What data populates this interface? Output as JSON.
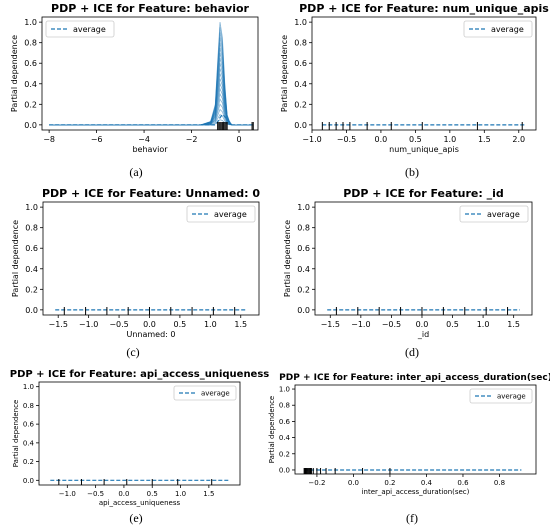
{
  "chart_data": [
    {
      "type": "line",
      "panel_caption": "(a)",
      "title": "PDP + ICE for Feature: behavior",
      "xlabel": "behavior",
      "ylabel": "Partial dependence",
      "xlim": [
        -8.3,
        0.8
      ],
      "ylim": [
        -0.05,
        1.05
      ],
      "xticks": [
        -8,
        -6,
        -4,
        -2,
        0
      ],
      "xtick_labels": [
        "−8",
        "−6",
        "−4",
        "−2",
        "0"
      ],
      "yticks": [
        0.0,
        0.2,
        0.4,
        0.6,
        0.8,
        1.0
      ],
      "ytick_labels": [
        "0.0",
        "0.2",
        "0.4",
        "0.6",
        "0.8",
        "1.0"
      ],
      "legend": {
        "label": "average",
        "position": "top-left"
      },
      "rug_x": [
        -0.9,
        -0.85,
        -0.8,
        -0.75,
        -0.7,
        -0.65,
        -0.6,
        -0.55,
        -0.5,
        0.55,
        0.6
      ],
      "ice_profiles": {
        "x": [
          -8.0,
          -1.6,
          -1.2,
          -1.0,
          -0.9,
          -0.8,
          -0.7,
          -0.6,
          -0.5,
          -0.4,
          -0.3,
          0.0,
          0.6
        ],
        "peak_heights": [
          0.05,
          0.1,
          0.15,
          0.2,
          0.25,
          0.3,
          0.35,
          0.4,
          0.45,
          0.5,
          0.55,
          0.6,
          0.65,
          0.7,
          0.75,
          0.8,
          0.85,
          0.9,
          0.95,
          1.0
        ]
      },
      "series": [
        {
          "name": "average",
          "x": [
            -8.0,
            -1.0,
            -0.9,
            -0.8,
            -0.7,
            -0.6,
            -0.5,
            -0.4,
            -0.3,
            0.6
          ],
          "y": [
            0.0,
            0.0,
            0.03,
            0.07,
            0.1,
            0.08,
            0.05,
            0.03,
            0.0,
            0.0
          ]
        }
      ]
    },
    {
      "type": "line",
      "panel_caption": "(b)",
      "title": "PDP + ICE for Feature: num_unique_apis",
      "xlabel": "num_unique_apis",
      "ylabel": "Partial dependence",
      "xlim": [
        -1.0,
        2.25
      ],
      "ylim": [
        -0.05,
        1.05
      ],
      "xticks": [
        -1.0,
        -0.5,
        0.0,
        0.5,
        1.0,
        1.5,
        2.0
      ],
      "xtick_labels": [
        "−1.0",
        "−0.5",
        "0.0",
        "0.5",
        "1.0",
        "1.5",
        "2.0"
      ],
      "yticks": [
        0.0,
        0.2,
        0.4,
        0.6,
        0.8,
        1.0
      ],
      "ytick_labels": [
        "0.0",
        "0.2",
        "0.4",
        "0.6",
        "0.8",
        "1.0"
      ],
      "legend": {
        "label": "average",
        "position": "top-right"
      },
      "rug_x": [
        -0.85,
        -0.75,
        -0.65,
        -0.55,
        -0.45,
        -0.2,
        0.15,
        0.6,
        1.4,
        2.05
      ],
      "series": [
        {
          "name": "average",
          "x": [
            -0.85,
            2.1
          ],
          "y": [
            0.0,
            0.0
          ]
        }
      ]
    },
    {
      "type": "line",
      "panel_caption": "(c)",
      "title": "PDP + ICE for Feature: Unnamed: 0",
      "xlabel": "Unnamed: 0",
      "ylabel": "Partial dependence",
      "xlim": [
        -1.75,
        1.8
      ],
      "ylim": [
        -0.05,
        1.05
      ],
      "xticks": [
        -1.5,
        -1.0,
        -0.5,
        0.0,
        0.5,
        1.0,
        1.5
      ],
      "xtick_labels": [
        "−1.5",
        "−1.0",
        "−0.5",
        "0.0",
        "0.5",
        "1.0",
        "1.5"
      ],
      "yticks": [
        0.0,
        0.2,
        0.4,
        0.6,
        0.8,
        1.0
      ],
      "ytick_labels": [
        "0.0",
        "0.2",
        "0.4",
        "0.6",
        "0.8",
        "1.0"
      ],
      "legend": {
        "label": "average",
        "position": "top-right"
      },
      "rug_x": [
        -1.4,
        -1.05,
        -0.7,
        -0.35,
        0.0,
        0.35,
        0.7,
        1.05,
        1.4
      ],
      "series": [
        {
          "name": "average",
          "x": [
            -1.55,
            1.6
          ],
          "y": [
            0.0,
            0.0
          ]
        }
      ]
    },
    {
      "type": "line",
      "panel_caption": "(d)",
      "title": "PDP + ICE for Feature: _id",
      "xlabel": "_id",
      "ylabel": "Partial dependence",
      "xlim": [
        -1.75,
        1.8
      ],
      "ylim": [
        -0.05,
        1.05
      ],
      "xticks": [
        -1.5,
        -1.0,
        -0.5,
        0.0,
        0.5,
        1.0,
        1.5
      ],
      "xtick_labels": [
        "−1.5",
        "−1.0",
        "−0.5",
        "0.0",
        "0.5",
        "1.0",
        "1.5"
      ],
      "yticks": [
        0.0,
        0.2,
        0.4,
        0.6,
        0.8,
        1.0
      ],
      "ytick_labels": [
        "0.0",
        "0.2",
        "0.4",
        "0.6",
        "0.8",
        "1.0"
      ],
      "legend": {
        "label": "average",
        "position": "top-right"
      },
      "rug_x": [
        -1.4,
        -1.05,
        -0.7,
        -0.35,
        0.0,
        0.35,
        0.7,
        1.05,
        1.4
      ],
      "series": [
        {
          "name": "average",
          "x": [
            -1.55,
            1.6
          ],
          "y": [
            0.0,
            0.0
          ]
        }
      ]
    },
    {
      "type": "line",
      "panel_caption": "(e)",
      "title": "PDP + ICE for Feature: api_access_uniqueness",
      "xlabel": "api_access_uniqueness",
      "ylabel": "Partial dependence",
      "xlim": [
        -1.5,
        2.05
      ],
      "ylim": [
        -0.05,
        1.05
      ],
      "xticks": [
        -1.0,
        -0.5,
        0.0,
        0.5,
        1.0,
        1.5
      ],
      "xtick_labels": [
        "−1.0",
        "−0.5",
        "0.0",
        "0.5",
        "1.0",
        "1.5"
      ],
      "yticks": [
        0.0,
        0.2,
        0.4,
        0.6,
        0.8,
        1.0
      ],
      "ytick_labels": [
        "0.0",
        "0.2",
        "0.4",
        "0.6",
        "0.8",
        "1.0"
      ],
      "legend": {
        "label": "average",
        "position": "top-right"
      },
      "rug_x": [
        -1.15,
        -0.75,
        -0.35,
        0.05,
        0.5,
        0.95,
        1.55
      ],
      "series": [
        {
          "name": "average",
          "x": [
            -1.3,
            1.85
          ],
          "y": [
            0.0,
            0.0
          ]
        }
      ]
    },
    {
      "type": "line",
      "panel_caption": "(f)",
      "title": "PDP + ICE for Feature: inter_api_access_duration(sec)",
      "xlabel": "inter_api_access_duration(sec)",
      "ylabel": "Partial dependence",
      "xlim": [
        -0.32,
        1.0
      ],
      "ylim": [
        -0.05,
        1.05
      ],
      "xticks": [
        -0.2,
        0.0,
        0.2,
        0.4,
        0.6,
        0.8
      ],
      "xtick_labels": [
        "−0.2",
        "0.0",
        "0.2",
        "0.4",
        "0.6",
        "0.8"
      ],
      "yticks": [
        0.0,
        0.2,
        0.4,
        0.6,
        0.8,
        1.0
      ],
      "ytick_labels": [
        "0.0",
        "0.2",
        "0.4",
        "0.6",
        "0.8",
        "1.0"
      ],
      "legend": {
        "label": "average",
        "position": "top-right"
      },
      "rug_x": [
        -0.27,
        -0.265,
        -0.26,
        -0.255,
        -0.25,
        -0.245,
        -0.24,
        -0.235,
        -0.23,
        -0.22,
        -0.2,
        -0.18,
        -0.15,
        -0.1,
        0.05,
        0.2
      ],
      "series": [
        {
          "name": "average",
          "x": [
            -0.27,
            0.92
          ],
          "y": [
            0.0,
            0.0
          ]
        }
      ]
    }
  ]
}
